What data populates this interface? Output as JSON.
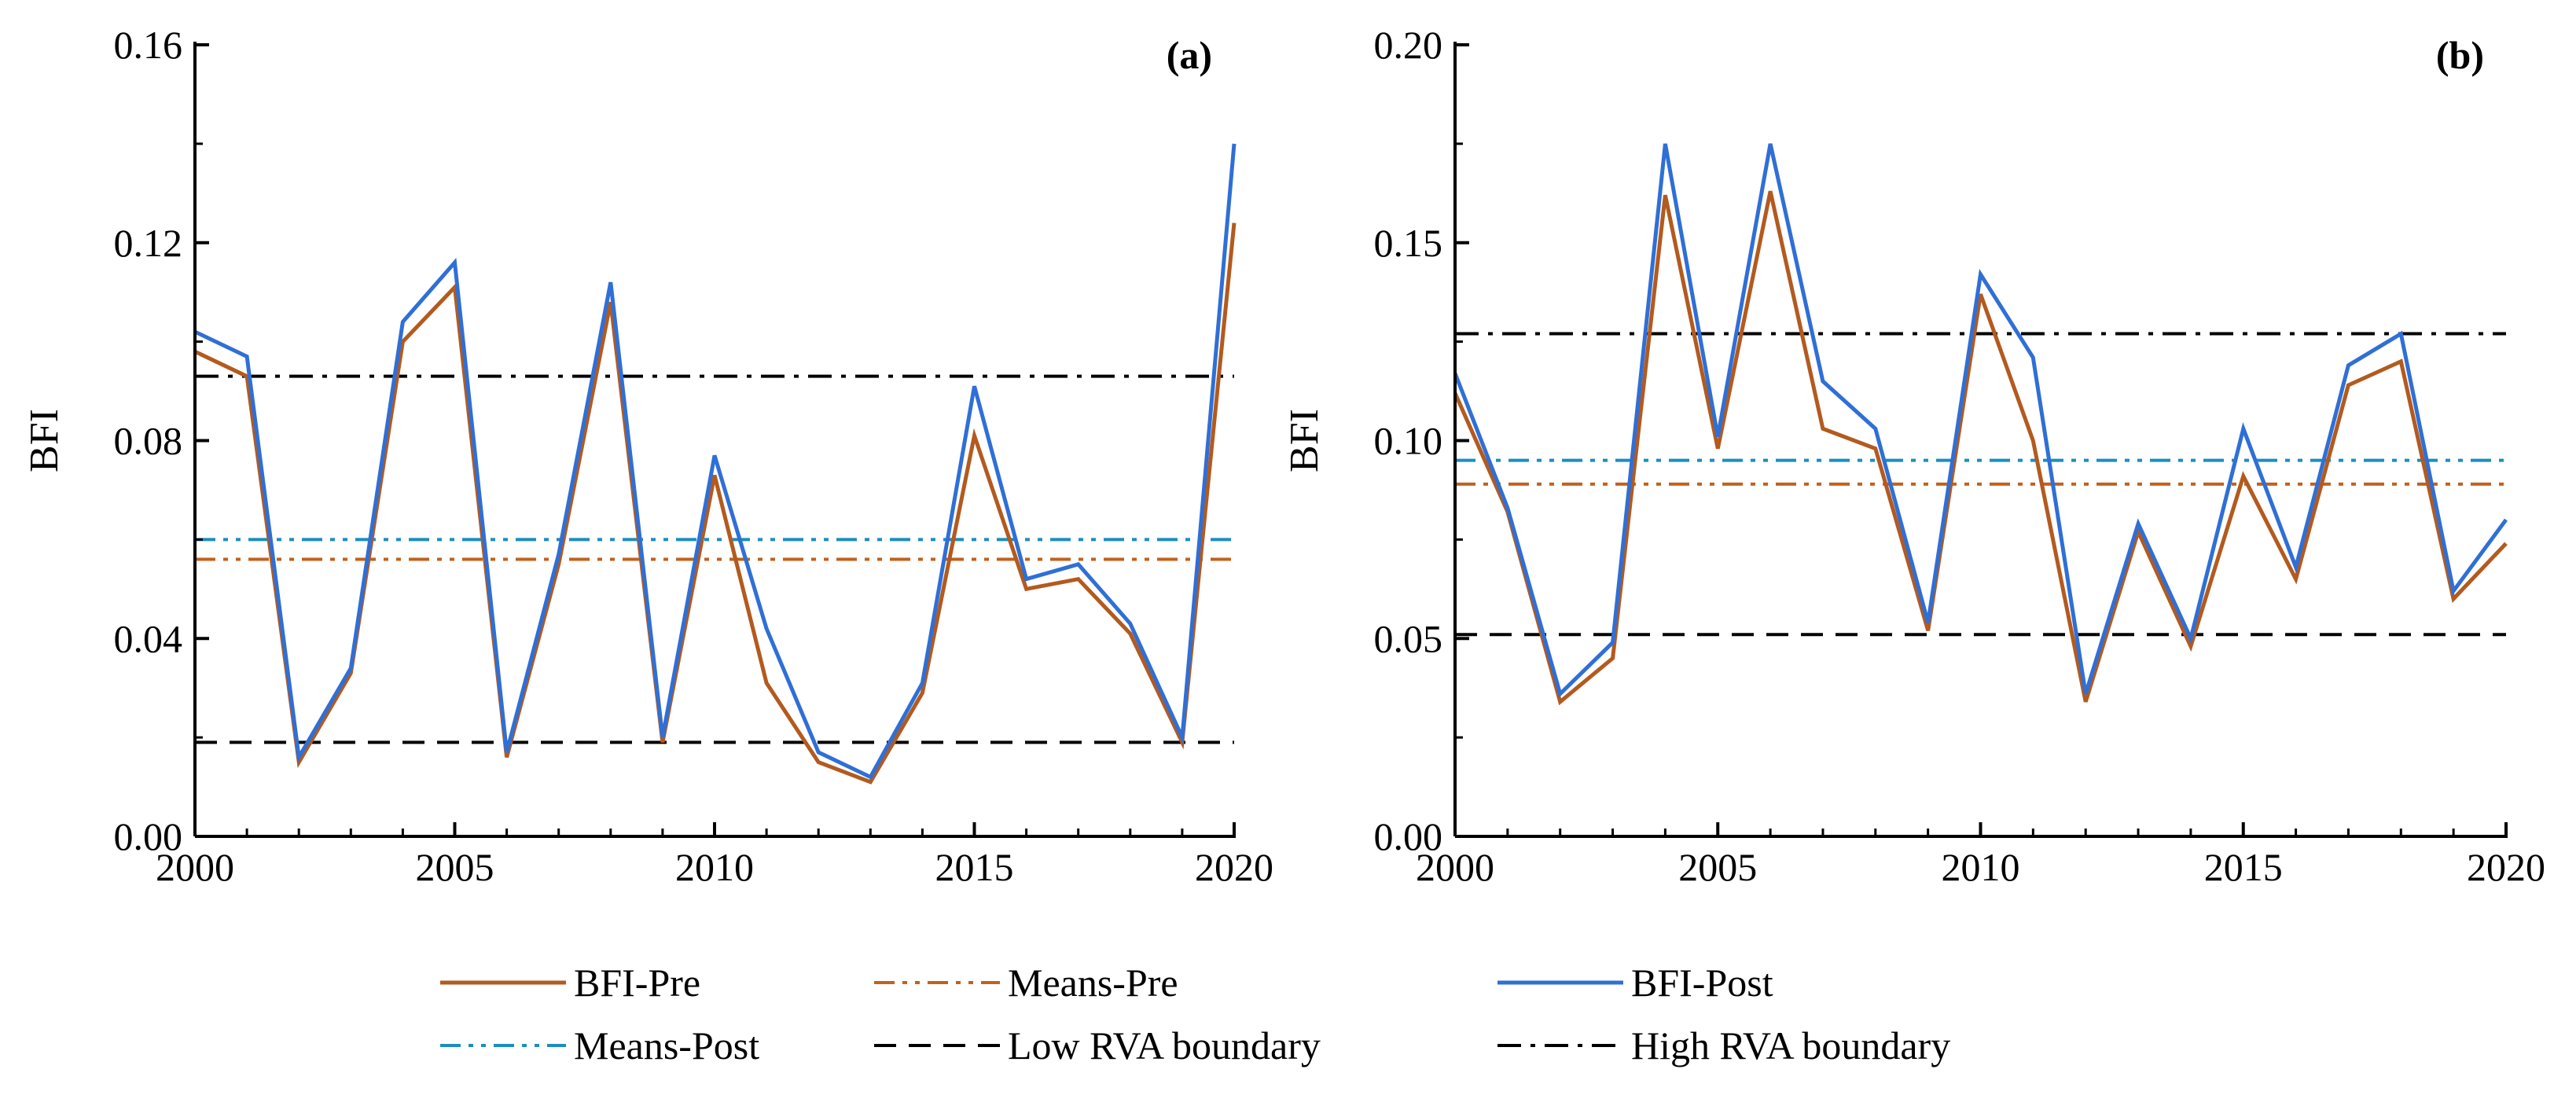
{
  "colors": {
    "bfi_pre": "#b35a1f",
    "means_pre": "#c0621f",
    "bfi_post": "#2f6fd6",
    "means_post": "#1b8ec0",
    "low_rva": "#000000",
    "high_rva": "#000000"
  },
  "legend": [
    {
      "key": "bfi_pre",
      "label": "BFI-Pre",
      "dash": "solid"
    },
    {
      "key": "means_pre",
      "label": "Means-Pre",
      "dash": "dashdotdot"
    },
    {
      "key": "bfi_post",
      "label": "BFI-Post",
      "dash": "solid"
    },
    {
      "key": "means_post",
      "label": "Means-Post",
      "dash": "dashdotdot"
    },
    {
      "key": "low_rva",
      "label": "Low RVA boundary",
      "dash": "dash"
    },
    {
      "key": "high_rva",
      "label": "High RVA boundary",
      "dash": "dashdot"
    }
  ],
  "chart_data": [
    {
      "type": "line",
      "panel_label": "(a)",
      "ylabel": "BFI",
      "xlabel": "",
      "xlim": [
        2000,
        2020
      ],
      "ylim": [
        0.0,
        0.16
      ],
      "xticks": [
        "2000",
        "2005",
        "2010",
        "2015",
        "2020"
      ],
      "yticks": [
        "0.00",
        "0.04",
        "0.08",
        "0.12",
        "0.16"
      ],
      "x": [
        2000,
        2001,
        2002,
        2003,
        2004,
        2005,
        2006,
        2007,
        2008,
        2009,
        2010,
        2011,
        2012,
        2013,
        2014,
        2015,
        2016,
        2017,
        2018,
        2019,
        2020
      ],
      "series": [
        {
          "name": "BFI-Pre",
          "key": "bfi_pre",
          "values": [
            0.098,
            0.093,
            0.015,
            0.033,
            0.1,
            0.111,
            0.016,
            0.055,
            0.108,
            0.019,
            0.073,
            0.031,
            0.015,
            0.011,
            0.029,
            0.081,
            0.05,
            0.052,
            0.041,
            0.019,
            0.124
          ]
        },
        {
          "name": "BFI-Post",
          "key": "bfi_post",
          "values": [
            0.102,
            0.097,
            0.016,
            0.034,
            0.104,
            0.116,
            0.017,
            0.057,
            0.112,
            0.02,
            0.077,
            0.042,
            0.017,
            0.012,
            0.031,
            0.091,
            0.052,
            0.055,
            0.043,
            0.02,
            0.14
          ]
        }
      ],
      "reference_lines": [
        {
          "name": "Means-Pre",
          "key": "means_pre",
          "value": 0.056
        },
        {
          "name": "Means-Post",
          "key": "means_post",
          "value": 0.06
        },
        {
          "name": "Low RVA boundary",
          "key": "low_rva",
          "value": 0.019
        },
        {
          "name": "High RVA boundary",
          "key": "high_rva",
          "value": 0.093
        }
      ]
    },
    {
      "type": "line",
      "panel_label": "(b)",
      "ylabel": "BFI",
      "xlabel": "",
      "xlim": [
        2000,
        2020
      ],
      "ylim": [
        0.0,
        0.2
      ],
      "xticks": [
        "2000",
        "2005",
        "2010",
        "2015",
        "2020"
      ],
      "yticks": [
        "0.00",
        "0.05",
        "0.10",
        "0.15",
        "0.20"
      ],
      "x": [
        2000,
        2001,
        2002,
        2003,
        2004,
        2005,
        2006,
        2007,
        2008,
        2009,
        2010,
        2011,
        2012,
        2013,
        2014,
        2015,
        2016,
        2017,
        2018,
        2019,
        2020
      ],
      "series": [
        {
          "name": "BFI-Pre",
          "key": "bfi_pre",
          "values": [
            0.112,
            0.082,
            0.034,
            0.045,
            0.162,
            0.098,
            0.163,
            0.103,
            0.098,
            0.052,
            0.137,
            0.1,
            0.034,
            0.077,
            0.048,
            0.091,
            0.065,
            0.114,
            0.12,
            0.06,
            0.074
          ]
        },
        {
          "name": "BFI-Post",
          "key": "bfi_post",
          "values": [
            0.117,
            0.083,
            0.036,
            0.049,
            0.175,
            0.101,
            0.175,
            0.115,
            0.103,
            0.054,
            0.142,
            0.121,
            0.036,
            0.079,
            0.05,
            0.103,
            0.068,
            0.119,
            0.127,
            0.062,
            0.08
          ]
        }
      ],
      "reference_lines": [
        {
          "name": "Means-Pre",
          "key": "means_pre",
          "value": 0.089
        },
        {
          "name": "Means-Post",
          "key": "means_post",
          "value": 0.095
        },
        {
          "name": "Low RVA boundary",
          "key": "low_rva",
          "value": 0.051
        },
        {
          "name": "High RVA boundary",
          "key": "high_rva",
          "value": 0.127
        }
      ]
    }
  ]
}
